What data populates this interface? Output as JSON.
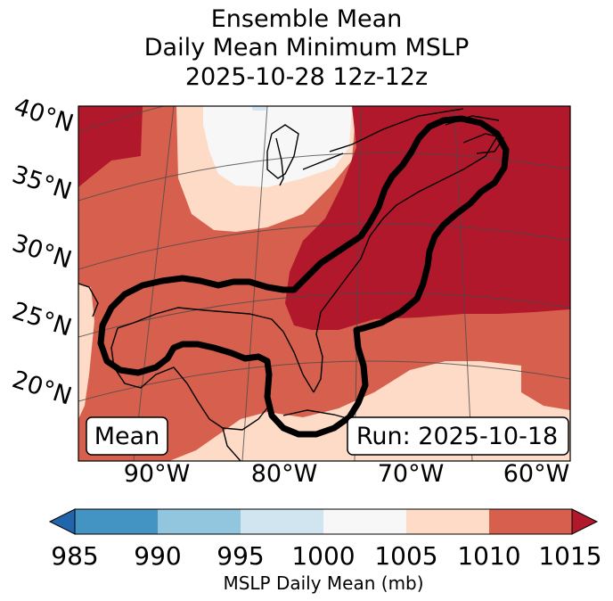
{
  "title": {
    "line1": "Ensemble Mean",
    "line2": "Daily Mean Minimum MSLP",
    "line3": "2025-10-28 12z-12z"
  },
  "map": {
    "lat_labels": [
      "40°N",
      "35°N",
      "30°N",
      "25°N",
      "20°N"
    ],
    "lon_labels": [
      "90°W",
      "80°W",
      "70°W",
      "60°W"
    ],
    "mean_box": "Mean",
    "run_box": "Run: 2025-10-18",
    "colors": {
      "c1015": "#b2182b",
      "c1010": "#d6604d",
      "c1005": "#fddbc7",
      "c1000": "#f7f7f7",
      "c995": "#d1e5f0",
      "c990": "#92c5de",
      "c985": "#4393c3",
      "c980": "#2166ac"
    }
  },
  "colorbar": {
    "ticks": [
      "985",
      "990",
      "995",
      "1000",
      "1005",
      "1010",
      "1015"
    ],
    "label": "MSLP Daily Mean (mb)",
    "colors": [
      "#4393c3",
      "#92c5de",
      "#d1e5f0",
      "#f7f7f7",
      "#fddbc7",
      "#d6604d"
    ]
  }
}
